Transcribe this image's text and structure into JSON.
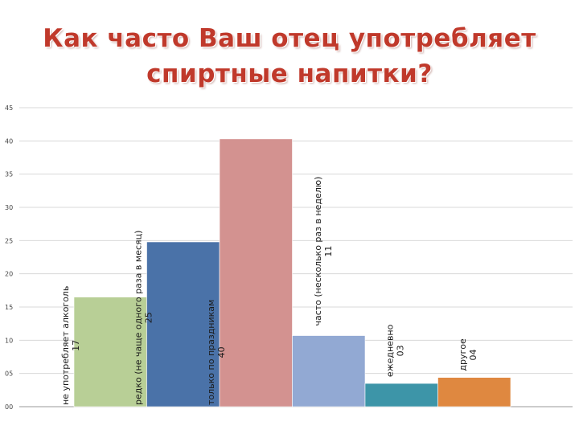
{
  "title": {
    "line1": "Как часто Ваш отец употребляет",
    "line2": "спиртные напитки?"
  },
  "chart_data": {
    "type": "bar",
    "title": "Как часто Ваш отец употребляет спиртные напитки?",
    "categories": [
      "не употребляет алкоголь",
      "редко (не чаще одного раза в месяц)",
      "только по праздникам",
      "часто (несколько раз в неделю)",
      "ежедневно",
      "другое"
    ],
    "values": [
      16.5,
      24.8,
      40.3,
      10.7,
      3.5,
      4.4
    ],
    "value_labels": [
      "17",
      "25",
      "40",
      "11",
      "03",
      "04"
    ],
    "colors": [
      "#b8cf96",
      "#4a72a8",
      "#d39290",
      "#92a9d3",
      "#3d95a8",
      "#df8840"
    ],
    "yticks": [
      "00",
      "05",
      "10",
      "15",
      "20",
      "25",
      "30",
      "35",
      "40",
      "45"
    ],
    "ylim": [
      0,
      45
    ],
    "grid": true,
    "legend": "none"
  }
}
